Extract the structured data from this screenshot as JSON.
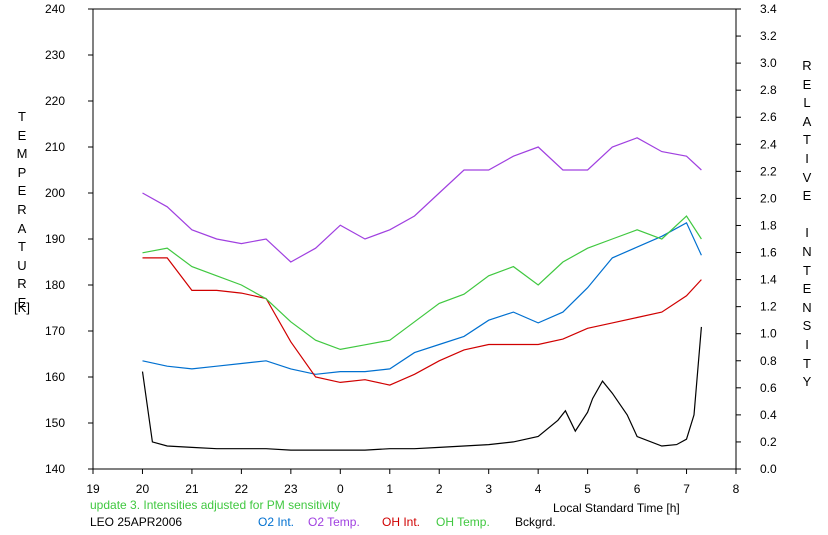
{
  "chart_data": {
    "type": "line",
    "title": "",
    "xlabel": "Local Standard Time [h]",
    "ylabel_left": "TEMPERATURE",
    "ylabel_left_unit": "[K]",
    "ylabel_right": "RELATIVE INTENSITY",
    "x_range": [
      19,
      8
    ],
    "x_tick_labels": [
      "19",
      "20",
      "21",
      "22",
      "23",
      "0",
      "1",
      "2",
      "3",
      "4",
      "5",
      "6",
      "7",
      "8"
    ],
    "ylim_left": [
      140,
      240
    ],
    "y_left_ticks": [
      140,
      150,
      160,
      170,
      180,
      190,
      200,
      210,
      220,
      230,
      240
    ],
    "ylim_right": [
      0.0,
      3.4
    ],
    "y_right_ticks": [
      "0.0",
      "0.2",
      "0.4",
      "0.6",
      "0.8",
      "1.0",
      "1.2",
      "1.4",
      "1.6",
      "1.8",
      "2.0",
      "2.2",
      "2.4",
      "2.6",
      "2.8",
      "3.0",
      "3.2",
      "3.4"
    ],
    "grid": false,
    "legend_placement": "bottom",
    "series": [
      {
        "name": "O2 Int.",
        "axis": "right",
        "color": "#0070d0",
        "x": [
          20.0,
          20.5,
          21.0,
          21.5,
          22.0,
          22.5,
          23.0,
          23.5,
          24.0,
          24.5,
          25.0,
          25.5,
          26.0,
          26.5,
          27.0,
          27.5,
          28.0,
          28.5,
          29.0,
          29.5,
          30.0,
          30.5,
          31.0,
          31.3
        ],
        "y": [
          0.8,
          0.76,
          0.74,
          0.76,
          0.78,
          0.8,
          0.74,
          0.7,
          0.72,
          0.72,
          0.74,
          0.86,
          0.92,
          0.98,
          1.1,
          1.16,
          1.08,
          1.16,
          1.34,
          1.56,
          1.64,
          1.72,
          1.82,
          1.58
        ]
      },
      {
        "name": "O2 Temp.",
        "axis": "left",
        "color": "#a040e0",
        "x": [
          20.0,
          20.5,
          21.0,
          21.5,
          22.0,
          22.5,
          23.0,
          23.5,
          24.0,
          24.5,
          25.0,
          25.5,
          26.0,
          26.5,
          27.0,
          27.5,
          28.0,
          28.5,
          29.0,
          29.5,
          30.0,
          30.5,
          31.0,
          31.3
        ],
        "y": [
          200,
          197,
          192,
          190,
          189,
          190,
          185,
          188,
          193,
          190,
          192,
          195,
          200,
          205,
          205,
          208,
          210,
          205,
          205,
          210,
          212,
          209,
          208,
          205
        ]
      },
      {
        "name": "OH Int.",
        "axis": "right",
        "color": "#d00000",
        "x": [
          20.0,
          20.5,
          21.0,
          21.5,
          22.0,
          22.5,
          23.0,
          23.5,
          24.0,
          24.5,
          25.0,
          25.5,
          26.0,
          26.5,
          27.0,
          27.5,
          28.0,
          28.5,
          29.0,
          29.5,
          30.0,
          30.5,
          31.0,
          31.3
        ],
        "y": [
          1.56,
          1.56,
          1.32,
          1.32,
          1.3,
          1.26,
          0.94,
          0.68,
          0.64,
          0.66,
          0.62,
          0.7,
          0.8,
          0.88,
          0.92,
          0.92,
          0.92,
          0.96,
          1.04,
          1.08,
          1.12,
          1.16,
          1.28,
          1.4
        ]
      },
      {
        "name": "OH Temp.",
        "axis": "left",
        "color": "#40c840",
        "x": [
          20.0,
          20.5,
          21.0,
          21.5,
          22.0,
          22.5,
          23.0,
          23.5,
          24.0,
          24.5,
          25.0,
          25.5,
          26.0,
          26.5,
          27.0,
          27.5,
          28.0,
          28.5,
          29.0,
          29.5,
          30.0,
          30.5,
          31.0,
          31.3
        ],
        "y": [
          187,
          188,
          184,
          182,
          180,
          177,
          172,
          168,
          166,
          167,
          168,
          172,
          176,
          178,
          182,
          184,
          180,
          185,
          188,
          190,
          192,
          190,
          195,
          190
        ]
      },
      {
        "name": "Bckgrd.",
        "axis": "right",
        "color": "#000000",
        "x": [
          20.0,
          20.2,
          20.5,
          21.0,
          21.5,
          22.0,
          22.5,
          23.0,
          23.5,
          24.0,
          24.5,
          25.0,
          25.5,
          26.0,
          26.5,
          27.0,
          27.5,
          28.0,
          28.4,
          28.55,
          28.75,
          29.0,
          29.1,
          29.3,
          29.5,
          29.8,
          30.0,
          30.5,
          30.8,
          31.0,
          31.15,
          31.3
        ],
        "y": [
          0.72,
          0.2,
          0.17,
          0.16,
          0.15,
          0.15,
          0.15,
          0.14,
          0.14,
          0.14,
          0.14,
          0.15,
          0.15,
          0.16,
          0.17,
          0.18,
          0.2,
          0.24,
          0.36,
          0.43,
          0.28,
          0.42,
          0.52,
          0.65,
          0.56,
          0.4,
          0.24,
          0.17,
          0.18,
          0.22,
          0.4,
          1.05
        ]
      }
    ]
  },
  "labels": {
    "left_vertical": "TEMPERATURE",
    "left_unit": "[K]",
    "right_vertical": "RELATIVE INTENSITY",
    "x_axis_title": "Local Standard Time [h]",
    "note": "update 3. Intensities adjusted for PM sensitivity",
    "station_date": "LEO 25APR2006"
  },
  "colors": {
    "note": "#40c840",
    "axis": "#000000",
    "background": "#ffffff"
  }
}
